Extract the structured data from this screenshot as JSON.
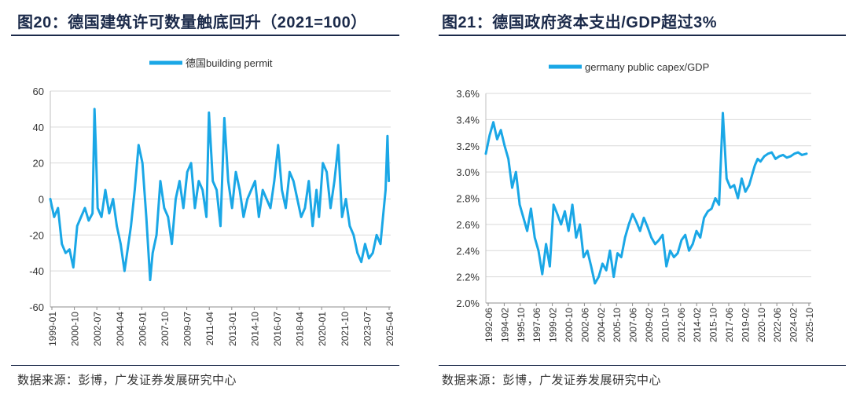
{
  "left": {
    "title": "图20：德国建筑许可数量触底回升（2021=100）",
    "source": "数据来源：彭博，广发证券发展研究中心"
  },
  "right": {
    "title": "图21：德国政府资本支出/GDP超过3%",
    "source": "数据来源：彭博，广发证券发展研究中心"
  },
  "colors": {
    "series": "#1aa7e6",
    "title": "#1b2a4a",
    "text": "#333333"
  },
  "chart_data": [
    {
      "type": "line",
      "legend": "德国building permit",
      "title": "",
      "xlabel": "",
      "ylabel": "",
      "ylim": [
        -60,
        60
      ],
      "yticks": [
        60,
        40,
        20,
        0,
        -20,
        -40,
        -60
      ],
      "ytick_labels": [
        "60",
        "40",
        "20",
        "0",
        "-20",
        "-40",
        "-60"
      ],
      "xrange": [
        1999.0,
        2025.6
      ],
      "xtick_labels": [
        "1999-01",
        "2000-10",
        "2002-07",
        "2004-04",
        "2006-01",
        "2007-10",
        "2009-07",
        "2011-04",
        "2013-01",
        "2014-10",
        "2016-07",
        "2018-04",
        "2020-01",
        "2021-10",
        "2023-07",
        "2025-04"
      ],
      "x": [
        1999.0,
        1999.3,
        1999.6,
        1999.9,
        2000.2,
        2000.5,
        2000.8,
        2001.1,
        2001.4,
        2001.7,
        2002.0,
        2002.3,
        2002.45,
        2002.55,
        2002.7,
        2003.0,
        2003.3,
        2003.6,
        2003.9,
        2004.2,
        2004.5,
        2004.8,
        2005.0,
        2005.3,
        2005.6,
        2005.9,
        2006.2,
        2006.5,
        2006.8,
        2007.0,
        2007.3,
        2007.6,
        2007.9,
        2008.2,
        2008.5,
        2008.8,
        2009.1,
        2009.4,
        2009.7,
        2010.0,
        2010.3,
        2010.6,
        2010.9,
        2011.2,
        2011.4,
        2011.7,
        2012.0,
        2012.3,
        2012.6,
        2012.9,
        2013.2,
        2013.5,
        2013.8,
        2014.1,
        2014.4,
        2014.7,
        2015.0,
        2015.3,
        2015.6,
        2015.9,
        2016.2,
        2016.5,
        2016.8,
        2017.1,
        2017.4,
        2017.7,
        2018.0,
        2018.3,
        2018.6,
        2018.9,
        2019.2,
        2019.5,
        2019.8,
        2020.0,
        2020.3,
        2020.6,
        2020.9,
        2021.2,
        2021.5,
        2021.8,
        2022.1,
        2022.4,
        2022.7,
        2023.0,
        2023.3,
        2023.6,
        2023.9,
        2024.2,
        2024.5,
        2024.8,
        2025.0,
        2025.2,
        2025.35,
        2025.45
      ],
      "values": [
        0,
        -10,
        -5,
        -25,
        -30,
        -28,
        -38,
        -15,
        -10,
        -5,
        -12,
        -8,
        50,
        30,
        -5,
        -10,
        5,
        -8,
        0,
        -15,
        -25,
        -40,
        -30,
        -15,
        5,
        30,
        20,
        -10,
        -45,
        -30,
        -20,
        10,
        -5,
        -10,
        -25,
        0,
        10,
        -5,
        15,
        20,
        -5,
        10,
        5,
        -10,
        48,
        10,
        5,
        -15,
        45,
        10,
        -5,
        15,
        5,
        -10,
        0,
        5,
        10,
        -10,
        5,
        0,
        -5,
        10,
        30,
        5,
        -5,
        15,
        10,
        0,
        -10,
        -5,
        10,
        -15,
        5,
        -10,
        20,
        15,
        -5,
        10,
        30,
        -10,
        0,
        -15,
        -20,
        -30,
        -35,
        -25,
        -33,
        -30,
        -20,
        -25,
        -10,
        5,
        35,
        10
      ]
    },
    {
      "type": "line",
      "legend": "germany public capex/GDP",
      "title": "",
      "xlabel": "",
      "ylabel": "",
      "ylim": [
        2.0,
        3.6
      ],
      "yticks": [
        3.6,
        3.4,
        3.2,
        3.0,
        2.8,
        2.6,
        2.4,
        2.2,
        2.0
      ],
      "ytick_labels": [
        "3.6%",
        "3.4%",
        "3.2%",
        "3.0%",
        "2.8%",
        "2.6%",
        "2.4%",
        "2.2%",
        "2.0%"
      ],
      "xrange": [
        1992.4,
        2027.0
      ],
      "xtick_labels": [
        "1992-06",
        "1994-02",
        "1995-10",
        "1997-06",
        "1999-02",
        "2000-10",
        "2002-06",
        "2004-02",
        "2005-10",
        "2007-06",
        "2009-02",
        "2010-10",
        "2012-06",
        "2014-02",
        "2015-10",
        "2017-06",
        "2019-02",
        "2020-10",
        "2022-06",
        "2024-02",
        "2025-10"
      ],
      "x": [
        1992.4,
        1992.8,
        1993.2,
        1993.6,
        1994.0,
        1994.4,
        1994.8,
        1995.2,
        1995.6,
        1996.0,
        1996.4,
        1996.8,
        1997.2,
        1997.6,
        1998.0,
        1998.4,
        1998.8,
        1999.2,
        1999.6,
        2000.0,
        2000.4,
        2000.8,
        2001.2,
        2001.6,
        2002.0,
        2002.4,
        2002.8,
        2003.2,
        2003.6,
        2004.0,
        2004.4,
        2004.8,
        2005.2,
        2005.6,
        2006.0,
        2006.4,
        2006.8,
        2007.2,
        2007.6,
        2008.0,
        2008.4,
        2008.8,
        2009.2,
        2009.6,
        2010.0,
        2010.4,
        2010.8,
        2011.2,
        2011.6,
        2012.0,
        2012.4,
        2012.8,
        2013.2,
        2013.6,
        2014.0,
        2014.4,
        2014.8,
        2015.2,
        2015.6,
        2016.0,
        2016.4,
        2016.8,
        2017.2,
        2017.6,
        2018.0,
        2018.4,
        2018.8,
        2019.2,
        2019.6,
        2020.0,
        2020.4,
        2020.8,
        2021.0,
        2021.3,
        2021.6,
        2022.0,
        2022.4,
        2022.8,
        2023.2,
        2023.6,
        2024.0,
        2024.4,
        2024.8,
        2025.2,
        2025.6,
        2026.0,
        2026.5
      ],
      "values": [
        3.14,
        3.28,
        3.38,
        3.25,
        3.32,
        3.2,
        3.1,
        2.88,
        3.0,
        2.75,
        2.65,
        2.55,
        2.72,
        2.5,
        2.4,
        2.22,
        2.45,
        2.28,
        2.75,
        2.68,
        2.6,
        2.7,
        2.55,
        2.75,
        2.5,
        2.6,
        2.35,
        2.4,
        2.28,
        2.15,
        2.2,
        2.3,
        2.25,
        2.4,
        2.2,
        2.38,
        2.35,
        2.5,
        2.6,
        2.68,
        2.62,
        2.55,
        2.65,
        2.58,
        2.5,
        2.45,
        2.48,
        2.52,
        2.28,
        2.4,
        2.35,
        2.38,
        2.48,
        2.52,
        2.4,
        2.45,
        2.55,
        2.5,
        2.65,
        2.7,
        2.72,
        2.8,
        2.75,
        3.45,
        2.95,
        2.88,
        2.9,
        2.8,
        2.95,
        2.85,
        2.9,
        3.0,
        3.05,
        3.1,
        3.08,
        3.12,
        3.14,
        3.15,
        3.1,
        3.12,
        3.13,
        3.11,
        3.12,
        3.14,
        3.15,
        3.13,
        3.14
      ]
    }
  ]
}
